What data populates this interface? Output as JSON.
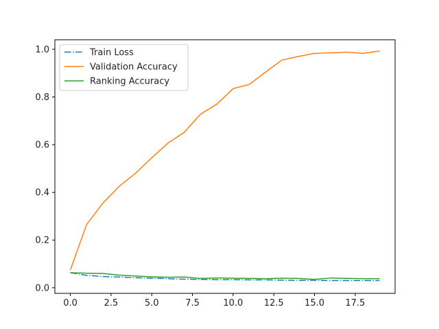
{
  "chart_data": {
    "type": "line",
    "x": [
      0,
      1,
      2,
      3,
      4,
      5,
      6,
      7,
      8,
      9,
      10,
      11,
      12,
      13,
      14,
      15,
      16,
      17,
      18,
      19
    ],
    "series": [
      {
        "name": "Train Loss",
        "color": "#1f77b4",
        "dash": "dashdot",
        "values": [
          0.063,
          0.052,
          0.047,
          0.045,
          0.042,
          0.04,
          0.038,
          0.036,
          0.035,
          0.034,
          0.034,
          0.033,
          0.033,
          0.032,
          0.031,
          0.031,
          0.03,
          0.03,
          0.03,
          0.03
        ]
      },
      {
        "name": "Validation Accuracy",
        "color": "#ff7f0e",
        "dash": "solid",
        "values": [
          0.075,
          0.265,
          0.355,
          0.425,
          0.48,
          0.545,
          0.607,
          0.652,
          0.728,
          0.77,
          0.835,
          0.853,
          0.905,
          0.955,
          0.97,
          0.983,
          0.985,
          0.988,
          0.983,
          0.993
        ]
      },
      {
        "name": "Ranking Accuracy",
        "color": "#2ca02c",
        "dash": "solid",
        "values": [
          0.063,
          0.061,
          0.06,
          0.053,
          0.049,
          0.046,
          0.044,
          0.045,
          0.039,
          0.041,
          0.04,
          0.039,
          0.038,
          0.04,
          0.039,
          0.035,
          0.041,
          0.039,
          0.038,
          0.038
        ]
      }
    ],
    "xlim": [
      -0.95,
      19.95
    ],
    "ylim": [
      -0.0235,
      1.04
    ],
    "xticks": [
      0.0,
      2.5,
      5.0,
      7.5,
      10.0,
      12.5,
      15.0,
      17.5
    ],
    "xtick_labels": [
      "0.0",
      "2.5",
      "5.0",
      "7.5",
      "10.0",
      "12.5",
      "15.0",
      "17.5"
    ],
    "yticks": [
      0.0,
      0.2,
      0.4,
      0.6,
      0.8,
      1.0
    ],
    "ytick_labels": [
      "0.0",
      "0.2",
      "0.4",
      "0.6",
      "0.8",
      "1.0"
    ],
    "title": "",
    "xlabel": "",
    "ylabel": "",
    "grid": false,
    "legend_position": "top-left"
  }
}
